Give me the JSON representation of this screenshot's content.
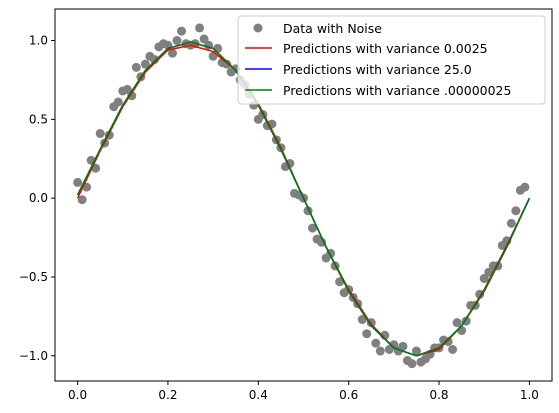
{
  "chart_data": {
    "type": "scatter",
    "title": "",
    "xlabel": "",
    "ylabel": "",
    "xlim": [
      -0.05,
      1.05
    ],
    "ylim": [
      -1.16,
      1.2
    ],
    "xticks": [
      0.0,
      0.2,
      0.4,
      0.6,
      0.8,
      1.0
    ],
    "xtick_labels": [
      "0.0",
      "0.2",
      "0.4",
      "0.6",
      "0.8",
      "1.0"
    ],
    "yticks": [
      -1.0,
      -0.5,
      0.0,
      0.5,
      1.0
    ],
    "ytick_labels": [
      "−1.0",
      "−0.5",
      "0.0",
      "0.5",
      "1.0"
    ],
    "grid": false,
    "legend_position": "top-right",
    "scatter_series": {
      "name": "Data with Noise",
      "color": "#808080",
      "points": [
        [
          0.0,
          0.1
        ],
        [
          0.01,
          -0.01
        ],
        [
          0.02,
          0.07
        ],
        [
          0.03,
          0.24
        ],
        [
          0.04,
          0.19
        ],
        [
          0.05,
          0.41
        ],
        [
          0.06,
          0.35
        ],
        [
          0.07,
          0.4
        ],
        [
          0.08,
          0.58
        ],
        [
          0.09,
          0.61
        ],
        [
          0.1,
          0.68
        ],
        [
          0.11,
          0.69
        ],
        [
          0.12,
          0.65
        ],
        [
          0.13,
          0.83
        ],
        [
          0.14,
          0.77
        ],
        [
          0.15,
          0.85
        ],
        [
          0.16,
          0.9
        ],
        [
          0.17,
          0.88
        ],
        [
          0.18,
          0.96
        ],
        [
          0.19,
          0.98
        ],
        [
          0.2,
          0.97
        ],
        [
          0.21,
          0.92
        ],
        [
          0.22,
          1.0
        ],
        [
          0.23,
          1.06
        ],
        [
          0.24,
          0.98
        ],
        [
          0.25,
          0.97
        ],
        [
          0.26,
          0.98
        ],
        [
          0.27,
          1.08
        ],
        [
          0.28,
          1.01
        ],
        [
          0.29,
          0.97
        ],
        [
          0.3,
          0.9
        ],
        [
          0.31,
          0.95
        ],
        [
          0.32,
          0.86
        ],
        [
          0.33,
          0.85
        ],
        [
          0.34,
          0.8
        ],
        [
          0.35,
          0.82
        ],
        [
          0.36,
          0.75
        ],
        [
          0.37,
          0.72
        ],
        [
          0.38,
          0.66
        ],
        [
          0.39,
          0.59
        ],
        [
          0.4,
          0.5
        ],
        [
          0.41,
          0.53
        ],
        [
          0.42,
          0.46
        ],
        [
          0.43,
          0.47
        ],
        [
          0.44,
          0.37
        ],
        [
          0.45,
          0.32
        ],
        [
          0.46,
          0.2
        ],
        [
          0.47,
          0.22
        ],
        [
          0.48,
          0.03
        ],
        [
          0.49,
          0.02
        ],
        [
          0.5,
          0.0
        ],
        [
          0.51,
          -0.08
        ],
        [
          0.52,
          -0.19
        ],
        [
          0.53,
          -0.26
        ],
        [
          0.54,
          -0.28
        ],
        [
          0.55,
          -0.38
        ],
        [
          0.56,
          -0.35
        ],
        [
          0.57,
          -0.43
        ],
        [
          0.58,
          -0.53
        ],
        [
          0.59,
          -0.6
        ],
        [
          0.6,
          -0.58
        ],
        [
          0.61,
          -0.63
        ],
        [
          0.62,
          -0.67
        ],
        [
          0.63,
          -0.77
        ],
        [
          0.64,
          -0.86
        ],
        [
          0.65,
          -0.79
        ],
        [
          0.66,
          -0.92
        ],
        [
          0.67,
          -0.97
        ],
        [
          0.68,
          -0.87
        ],
        [
          0.69,
          -0.96
        ],
        [
          0.7,
          -0.93
        ],
        [
          0.71,
          -0.97
        ],
        [
          0.72,
          -0.94
        ],
        [
          0.73,
          -1.03
        ],
        [
          0.74,
          -1.05
        ],
        [
          0.75,
          -0.97
        ],
        [
          0.76,
          -1.04
        ],
        [
          0.77,
          -1.02
        ],
        [
          0.78,
          -0.99
        ],
        [
          0.79,
          -0.95
        ],
        [
          0.8,
          -0.95
        ],
        [
          0.81,
          -0.9
        ],
        [
          0.82,
          -0.91
        ],
        [
          0.83,
          -0.96
        ],
        [
          0.84,
          -0.79
        ],
        [
          0.85,
          -0.84
        ],
        [
          0.86,
          -0.78
        ],
        [
          0.87,
          -0.68
        ],
        [
          0.88,
          -0.68
        ],
        [
          0.89,
          -0.61
        ],
        [
          0.9,
          -0.51
        ],
        [
          0.91,
          -0.47
        ],
        [
          0.92,
          -0.43
        ],
        [
          0.93,
          -0.43
        ],
        [
          0.94,
          -0.3
        ],
        [
          0.95,
          -0.27
        ],
        [
          0.96,
          -0.16
        ],
        [
          0.97,
          -0.08
        ],
        [
          0.98,
          0.05
        ],
        [
          0.99,
          0.07
        ]
      ]
    },
    "line_series": [
      {
        "name": "Predictions with variance 0.0025",
        "color": "#ff0000",
        "x": [
          0.0,
          0.05,
          0.1,
          0.15,
          0.2,
          0.25,
          0.3,
          0.35,
          0.4,
          0.45,
          0.5,
          0.55,
          0.6,
          0.65,
          0.7,
          0.75,
          0.8,
          0.85,
          0.9,
          0.95,
          1.0
        ],
        "y": [
          0.0,
          0.3,
          0.58,
          0.8,
          0.94,
          0.97,
          0.93,
          0.81,
          0.6,
          0.32,
          0.0,
          -0.31,
          -0.58,
          -0.8,
          -0.95,
          -1.0,
          -0.96,
          -0.81,
          -0.58,
          -0.3,
          0.0
        ]
      },
      {
        "name": "Predictions with variance 25.0",
        "color": "#0000ff",
        "x": [
          0.0,
          0.05,
          0.1,
          0.15,
          0.2,
          0.25,
          0.3,
          0.35,
          0.4,
          0.45,
          0.5,
          0.55,
          0.6,
          0.65,
          0.7,
          0.75,
          0.8,
          0.85,
          0.9,
          0.95,
          1.0
        ],
        "y": [
          0.02,
          0.31,
          0.59,
          0.81,
          0.95,
          0.99,
          0.95,
          0.81,
          0.59,
          0.31,
          0.0,
          -0.31,
          -0.59,
          -0.81,
          -0.95,
          -1.0,
          -0.95,
          -0.81,
          -0.59,
          -0.31,
          0.0
        ]
      },
      {
        "name": "Predictions with variance .00000025",
        "color": "#008000",
        "x": [
          0.0,
          0.05,
          0.1,
          0.15,
          0.2,
          0.25,
          0.3,
          0.35,
          0.4,
          0.45,
          0.5,
          0.55,
          0.6,
          0.65,
          0.7,
          0.75,
          0.8,
          0.85,
          0.9,
          0.95,
          1.0
        ],
        "y": [
          0.02,
          0.31,
          0.59,
          0.81,
          0.95,
          0.99,
          0.95,
          0.81,
          0.59,
          0.31,
          0.0,
          -0.31,
          -0.59,
          -0.81,
          -0.95,
          -1.0,
          -0.95,
          -0.81,
          -0.59,
          -0.31,
          0.0
        ]
      }
    ]
  }
}
